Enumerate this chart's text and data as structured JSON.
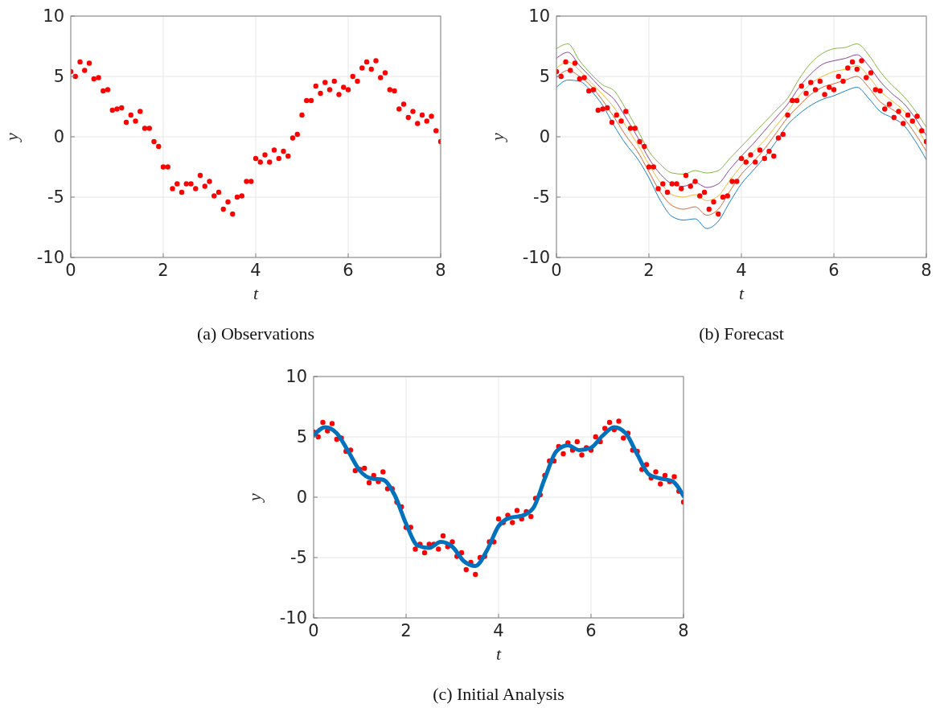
{
  "chart_data": [
    {
      "type": "scatter",
      "title": "(a) Observations",
      "xlabel": "t",
      "ylabel": "y",
      "xlim": [
        0,
        8
      ],
      "ylim": [
        -10,
        10
      ],
      "xticks": [
        0,
        2,
        4,
        6,
        8
      ],
      "yticks": [
        -10,
        -5,
        0,
        5,
        10
      ],
      "grid": true,
      "series": [
        {
          "type": "scatter",
          "color": "#ff0000",
          "marker": "circle",
          "x": [
            0,
            0.1,
            0.2,
            0.3,
            0.4,
            0.5,
            0.6,
            0.7,
            0.8,
            0.9,
            1,
            1.1,
            1.2,
            1.3,
            1.4,
            1.5,
            1.6,
            1.7,
            1.8,
            1.9,
            2,
            2.1,
            2.2,
            2.3,
            2.4,
            2.5,
            2.6,
            2.7,
            2.8,
            2.9,
            3,
            3.1,
            3.2,
            3.3,
            3.4,
            3.5,
            3.6,
            3.7,
            3.8,
            3.9,
            4,
            4.1,
            4.2,
            4.3,
            4.4,
            4.5,
            4.6,
            4.7,
            4.8,
            4.9,
            5,
            5.1,
            5.2,
            5.3,
            5.4,
            5.5,
            5.6,
            5.7,
            5.8,
            5.9,
            6,
            6.1,
            6.2,
            6.3,
            6.4,
            6.5,
            6.6,
            6.7,
            6.8,
            6.9,
            7,
            7.1,
            7.2,
            7.3,
            7.4,
            7.5,
            7.6,
            7.7,
            7.8,
            7.9,
            8
          ],
          "values": [
            5.4,
            5.0,
            6.2,
            5.5,
            6.1,
            4.8,
            4.9,
            3.8,
            3.9,
            2.2,
            2.3,
            2.4,
            1.2,
            1.8,
            1.3,
            2.1,
            0.7,
            0.7,
            -0.4,
            -0.8,
            -2.5,
            -2.5,
            -4.3,
            -3.9,
            -4.6,
            -3.9,
            -3.9,
            -4.3,
            -3.2,
            -4.1,
            -3.7,
            -4.9,
            -4.6,
            -6.0,
            -5.4,
            -6.4,
            -5.0,
            -4.9,
            -3.7,
            -3.7,
            -1.8,
            -2.1,
            -1.5,
            -2.1,
            -1.1,
            -1.8,
            -1.2,
            -1.6,
            -0.1,
            0.2,
            1.8,
            3.0,
            3.0,
            4.2,
            3.6,
            4.5,
            3.9,
            4.6,
            3.5,
            4.1,
            3.9,
            5.0,
            4.6,
            5.7,
            6.2,
            5.6,
            6.3,
            4.9,
            5.3,
            3.9,
            3.8,
            2.3,
            2.7,
            1.6,
            2.1,
            1.1,
            1.8,
            1.3,
            1.7,
            0.5,
            -0.4
          ]
        }
      ]
    },
    {
      "type": "line",
      "title": "(b) Forecast",
      "xlabel": "t",
      "ylabel": "y",
      "xlim": [
        0,
        8
      ],
      "ylim": [
        -10,
        10
      ],
      "xticks": [
        0,
        2,
        4,
        6,
        8
      ],
      "yticks": [
        -10,
        -5,
        0,
        5,
        10
      ],
      "grid": true,
      "series": [
        {
          "type": "line",
          "color": "#0072bd",
          "marker": "none",
          "x": [
            0,
            0.25,
            0.5,
            0.75,
            1,
            1.25,
            1.5,
            1.75,
            2,
            2.25,
            2.5,
            2.75,
            3,
            3.25,
            3.5,
            3.75,
            4,
            4.25,
            4.5,
            4.75,
            5,
            5.25,
            5.5,
            5.75,
            6,
            6.25,
            6.5,
            6.75,
            7,
            7.25,
            7.5,
            7.75,
            8
          ],
          "values": [
            4.1,
            4.7,
            4.6,
            3.8,
            2.6,
            0.9,
            -0.6,
            -1.8,
            -3.4,
            -5.3,
            -6.6,
            -6.9,
            -6.8,
            -7.6,
            -7.0,
            -5.4,
            -3.9,
            -2.8,
            -1.7,
            -0.4,
            1.0,
            1.9,
            2.6,
            3.1,
            3.4,
            3.8,
            4.1,
            3.2,
            2.1,
            1.6,
            1.0,
            -0.3,
            -1.9
          ]
        },
        {
          "type": "line",
          "color": "#d95319",
          "marker": "none",
          "x": [
            0,
            0.25,
            0.5,
            0.75,
            1,
            1.25,
            1.5,
            1.75,
            2,
            2.25,
            2.5,
            2.75,
            3,
            3.25,
            3.5,
            3.75,
            4,
            4.25,
            4.5,
            4.75,
            5,
            5.25,
            5.5,
            5.75,
            6,
            6.25,
            6.5,
            6.75,
            7,
            7.25,
            7.5,
            7.75,
            8
          ],
          "values": [
            4.9,
            5.5,
            5.0,
            4.2,
            3.0,
            1.6,
            0.1,
            -1.2,
            -2.9,
            -4.6,
            -5.7,
            -6.0,
            -5.8,
            -6.5,
            -6.0,
            -4.5,
            -3.1,
            -2.1,
            -1.0,
            0.3,
            1.6,
            2.6,
            3.5,
            4.1,
            4.4,
            4.7,
            5.0,
            4.1,
            2.9,
            2.3,
            1.6,
            0.3,
            -1.2
          ]
        },
        {
          "type": "line",
          "color": "#edb120",
          "marker": "none",
          "x": [
            0,
            0.25,
            0.5,
            0.75,
            1,
            1.25,
            1.5,
            1.75,
            2,
            2.25,
            2.5,
            2.75,
            3,
            3.25,
            3.5,
            3.75,
            4,
            4.25,
            4.5,
            4.75,
            5,
            5.25,
            5.5,
            5.75,
            6,
            6.25,
            6.5,
            6.75,
            7,
            7.25,
            7.5,
            7.75,
            8
          ],
          "values": [
            5.7,
            6.2,
            5.5,
            4.5,
            3.5,
            2.4,
            0.9,
            -0.6,
            -2.3,
            -3.8,
            -4.8,
            -5.0,
            -4.8,
            -5.3,
            -4.9,
            -3.6,
            -2.4,
            -1.3,
            -0.3,
            0.9,
            2.1,
            3.4,
            4.4,
            5.0,
            5.4,
            5.6,
            5.9,
            5.0,
            3.8,
            3.0,
            2.2,
            1.0,
            -0.6
          ]
        },
        {
          "type": "line",
          "color": "#7e2f8e",
          "marker": "none",
          "x": [
            0,
            0.25,
            0.5,
            0.75,
            1,
            1.25,
            1.5,
            1.75,
            2,
            2.25,
            2.5,
            2.75,
            3,
            3.25,
            3.5,
            3.75,
            4,
            4.25,
            4.5,
            4.75,
            5,
            5.25,
            5.5,
            5.75,
            6,
            6.25,
            6.5,
            6.75,
            7,
            7.25,
            7.5,
            7.75,
            8
          ],
          "values": [
            6.5,
            7.0,
            5.9,
            4.9,
            3.9,
            3.1,
            1.6,
            0.0,
            -1.8,
            -3.1,
            -3.9,
            -4.1,
            -3.8,
            -4.2,
            -3.9,
            -2.7,
            -1.6,
            -0.6,
            0.5,
            1.6,
            2.7,
            4.1,
            5.2,
            6.0,
            6.3,
            6.5,
            6.8,
            5.9,
            4.6,
            3.6,
            2.8,
            1.6,
            0.1
          ]
        },
        {
          "type": "line",
          "color": "#77ac30",
          "marker": "none",
          "x": [
            0,
            0.25,
            0.5,
            0.75,
            1,
            1.25,
            1.5,
            1.75,
            2,
            2.25,
            2.5,
            2.75,
            3,
            3.25,
            3.5,
            3.75,
            4,
            4.25,
            4.5,
            4.75,
            5,
            5.25,
            5.5,
            5.75,
            6,
            6.25,
            6.5,
            6.75,
            7,
            7.25,
            7.5,
            7.75,
            8
          ],
          "values": [
            7.3,
            7.7,
            6.3,
            5.2,
            4.3,
            3.8,
            2.3,
            0.6,
            -1.2,
            -2.3,
            -3.0,
            -3.1,
            -2.8,
            -3.0,
            -2.8,
            -1.8,
            -0.8,
            0.2,
            1.2,
            2.2,
            3.2,
            4.8,
            6.1,
            6.9,
            7.3,
            7.4,
            7.7,
            6.8,
            5.4,
            4.3,
            3.4,
            2.2,
            0.8
          ]
        },
        {
          "type": "scatter",
          "color": "#ff0000",
          "marker": "circle",
          "x": [
            0,
            0.1,
            0.2,
            0.3,
            0.4,
            0.5,
            0.6,
            0.7,
            0.8,
            0.9,
            1,
            1.1,
            1.2,
            1.3,
            1.4,
            1.5,
            1.6,
            1.7,
            1.8,
            1.9,
            2,
            2.1,
            2.2,
            2.3,
            2.4,
            2.5,
            2.6,
            2.7,
            2.8,
            2.9,
            3,
            3.1,
            3.2,
            3.3,
            3.4,
            3.5,
            3.6,
            3.7,
            3.8,
            3.9,
            4,
            4.1,
            4.2,
            4.3,
            4.4,
            4.5,
            4.6,
            4.7,
            4.8,
            4.9,
            5,
            5.1,
            5.2,
            5.3,
            5.4,
            5.5,
            5.6,
            5.7,
            5.8,
            5.9,
            6,
            6.1,
            6.2,
            6.3,
            6.4,
            6.5,
            6.6,
            6.7,
            6.8,
            6.9,
            7,
            7.1,
            7.2,
            7.3,
            7.4,
            7.5,
            7.6,
            7.7,
            7.8,
            7.9,
            8
          ],
          "values": [
            5.4,
            5.0,
            6.2,
            5.5,
            6.1,
            4.8,
            4.9,
            3.8,
            3.9,
            2.2,
            2.3,
            2.4,
            1.2,
            1.8,
            1.3,
            2.1,
            0.7,
            0.7,
            -0.4,
            -0.8,
            -2.5,
            -2.5,
            -4.3,
            -3.9,
            -4.6,
            -3.9,
            -3.9,
            -4.3,
            -3.2,
            -4.1,
            -3.7,
            -4.9,
            -4.6,
            -6.0,
            -5.4,
            -6.4,
            -5.0,
            -4.9,
            -3.7,
            -3.7,
            -1.8,
            -2.1,
            -1.5,
            -2.1,
            -1.1,
            -1.8,
            -1.2,
            -1.6,
            -0.1,
            0.2,
            1.8,
            3.0,
            3.0,
            4.2,
            3.6,
            4.5,
            3.9,
            4.6,
            3.5,
            4.1,
            3.9,
            5.0,
            4.6,
            5.7,
            6.2,
            5.6,
            6.3,
            4.9,
            5.3,
            3.9,
            3.8,
            2.3,
            2.7,
            1.6,
            2.1,
            1.1,
            1.8,
            1.3,
            1.7,
            0.5,
            -0.4
          ]
        }
      ]
    },
    {
      "type": "scatter",
      "title": "(c) Initial Analysis",
      "xlabel": "t",
      "ylabel": "y",
      "xlim": [
        0,
        8
      ],
      "ylim": [
        -10,
        10
      ],
      "xticks": [
        0,
        2,
        4,
        6,
        8
      ],
      "yticks": [
        -10,
        -5,
        0,
        5,
        10
      ],
      "grid": true,
      "series": [
        {
          "type": "scatter",
          "color": "#ff0000",
          "marker": "circle",
          "x": [
            0,
            0.1,
            0.2,
            0.3,
            0.4,
            0.5,
            0.6,
            0.7,
            0.8,
            0.9,
            1,
            1.1,
            1.2,
            1.3,
            1.4,
            1.5,
            1.6,
            1.7,
            1.8,
            1.9,
            2,
            2.1,
            2.2,
            2.3,
            2.4,
            2.5,
            2.6,
            2.7,
            2.8,
            2.9,
            3,
            3.1,
            3.2,
            3.3,
            3.4,
            3.5,
            3.6,
            3.7,
            3.8,
            3.9,
            4,
            4.1,
            4.2,
            4.3,
            4.4,
            4.5,
            4.6,
            4.7,
            4.8,
            4.9,
            5,
            5.1,
            5.2,
            5.3,
            5.4,
            5.5,
            5.6,
            5.7,
            5.8,
            5.9,
            6,
            6.1,
            6.2,
            6.3,
            6.4,
            6.5,
            6.6,
            6.7,
            6.8,
            6.9,
            7,
            7.1,
            7.2,
            7.3,
            7.4,
            7.5,
            7.6,
            7.7,
            7.8,
            7.9,
            8
          ],
          "values": [
            5.4,
            5.0,
            6.2,
            5.5,
            6.1,
            4.8,
            4.9,
            3.8,
            3.9,
            2.2,
            2.3,
            2.4,
            1.2,
            1.8,
            1.3,
            2.1,
            0.7,
            0.7,
            -0.4,
            -0.8,
            -2.5,
            -2.5,
            -4.3,
            -3.9,
            -4.6,
            -3.9,
            -3.9,
            -4.3,
            -3.2,
            -4.1,
            -3.7,
            -4.9,
            -4.6,
            -6.0,
            -5.4,
            -6.4,
            -5.0,
            -4.9,
            -3.7,
            -3.7,
            -1.8,
            -2.1,
            -1.5,
            -2.1,
            -1.1,
            -1.8,
            -1.2,
            -1.6,
            -0.1,
            0.2,
            1.8,
            3.0,
            3.0,
            4.2,
            3.6,
            4.5,
            3.9,
            4.6,
            3.5,
            4.1,
            3.9,
            5.0,
            4.6,
            5.7,
            6.2,
            5.6,
            6.3,
            4.9,
            5.3,
            3.9,
            3.8,
            2.3,
            2.7,
            1.6,
            2.1,
            1.1,
            1.8,
            1.3,
            1.7,
            0.5,
            -0.4
          ]
        },
        {
          "type": "line",
          "color": "#0072bd",
          "marker": "none",
          "x": [
            0,
            0.25,
            0.5,
            0.75,
            1,
            1.25,
            1.5,
            1.75,
            2,
            2.25,
            2.5,
            2.75,
            3,
            3.25,
            3.5,
            3.75,
            4,
            4.25,
            4.5,
            4.75,
            5,
            5.25,
            5.5,
            5.75,
            6,
            6.25,
            6.5,
            6.75,
            7,
            7.25,
            7.5,
            7.75,
            8
          ],
          "values": [
            5.1,
            5.8,
            5.3,
            3.8,
            2.2,
            1.55,
            1.45,
            0.2,
            -2.2,
            -4.0,
            -4.2,
            -3.7,
            -4.1,
            -5.3,
            -5.7,
            -4.4,
            -2.4,
            -1.7,
            -1.55,
            -0.9,
            1.55,
            3.8,
            4.3,
            3.9,
            4.1,
            5.1,
            5.8,
            5.3,
            3.55,
            1.9,
            1.55,
            1.35,
            0.1
          ]
        }
      ]
    }
  ]
}
